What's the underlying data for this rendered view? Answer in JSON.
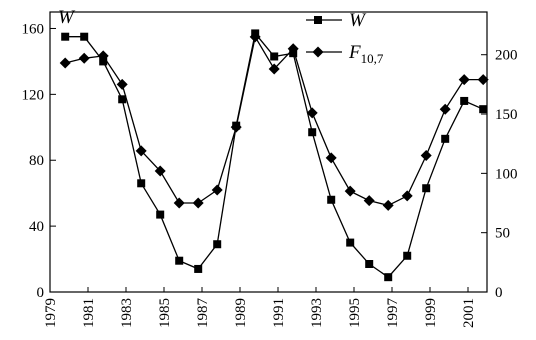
{
  "chart_data": {
    "type": "line",
    "title": "",
    "xlabel": "",
    "ylabel_left": "W",
    "ylabel_right": "",
    "xlim": [
      1979,
      2002
    ],
    "ylim_left": [
      0,
      170
    ],
    "ylim_right": [
      0,
      236
    ],
    "x_ticks": [
      "1979",
      "1981",
      "1983",
      "1985",
      "1987",
      "1989",
      "1991",
      "1993",
      "1995",
      "1997",
      "1999",
      "2001"
    ],
    "y_left_ticks": [
      "0",
      "40",
      "80",
      "120",
      "160"
    ],
    "y_right_ticks": [
      "0",
      "50",
      "100",
      "150",
      "200"
    ],
    "grid": false,
    "legend_position": "top-right",
    "series": [
      {
        "name": "W",
        "name_sub": "",
        "axis": "left",
        "marker": "square",
        "x": [
          1979.8,
          1980.8,
          1981.8,
          1982.8,
          1983.8,
          1984.8,
          1985.8,
          1986.8,
          1987.8,
          1988.8,
          1989.8,
          1990.8,
          1991.8,
          1992.8,
          1993.8,
          1994.8,
          1995.8,
          1996.8,
          1997.8,
          1998.8,
          1999.8,
          2000.8,
          2001.8
        ],
        "values": [
          155,
          155,
          140,
          117,
          66,
          47,
          19,
          14,
          29,
          101,
          157,
          143,
          145,
          97,
          56,
          30,
          17,
          9,
          22,
          63,
          93,
          116,
          111
        ]
      },
      {
        "name": "F",
        "name_sub": "10,7",
        "axis": "right",
        "marker": "diamond",
        "x": [
          1979.8,
          1980.8,
          1981.8,
          1982.8,
          1983.8,
          1984.8,
          1985.8,
          1986.8,
          1987.8,
          1988.8,
          1989.8,
          1990.8,
          1991.8,
          1992.8,
          1993.8,
          1994.8,
          1995.8,
          1996.8,
          1997.8,
          1998.8,
          1999.8,
          2000.8,
          2001.8
        ],
        "values": [
          193,
          197,
          199,
          175,
          119,
          102,
          75,
          75,
          86,
          139,
          215,
          188,
          205,
          151,
          113,
          85,
          77,
          73,
          81,
          115,
          154,
          179,
          179
        ]
      }
    ]
  }
}
